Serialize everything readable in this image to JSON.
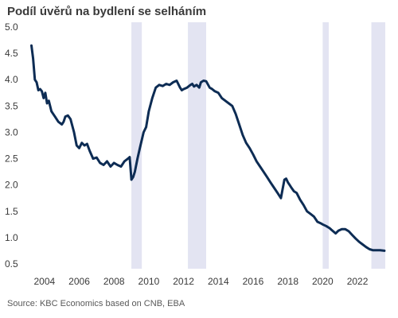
{
  "title": "Podíl úvěrů na bydlení se selháním",
  "source": "Source: KBC Economics based on CNB, EBA",
  "chart_data": {
    "type": "line",
    "title": "Podíl úvěrů na bydlení se selháním",
    "xlabel": "",
    "ylabel": "",
    "xlim": [
      2003.0,
      2023.6
    ],
    "ylim": [
      0.5,
      5.0
    ],
    "grid": false,
    "colors": {
      "line": "#0d2c54",
      "shade": "#e3e4f2",
      "text": "#3a3a3a"
    },
    "y_ticks": [
      "0.5",
      "1.0",
      "1.5",
      "2.0",
      "2.5",
      "3.0",
      "3.5",
      "4.0",
      "4.5",
      "5.0"
    ],
    "x_ticks": [
      "2004",
      "2006",
      "2008",
      "2010",
      "2012",
      "2014",
      "2016",
      "2018",
      "2020",
      "2022"
    ],
    "shaded_periods": [
      [
        2009.0,
        2009.6
      ],
      [
        2012.25,
        2013.3
      ],
      [
        2020.0,
        2020.35
      ],
      [
        2022.8,
        2023.6
      ]
    ],
    "series": [
      {
        "x": [
          2003.25,
          2003.35,
          2003.45,
          2003.55,
          2003.65,
          2003.75,
          2003.85,
          2003.95,
          2004.05,
          2004.15,
          2004.25,
          2004.4,
          2004.5,
          2004.6,
          2004.8,
          2005.0,
          2005.1,
          2005.2,
          2005.35,
          2005.5,
          2005.7,
          2005.85,
          2006.0,
          2006.15,
          2006.3,
          2006.45,
          2006.6,
          2006.8,
          2007.0,
          2007.2,
          2007.4,
          2007.6,
          2007.8,
          2008.0,
          2008.2,
          2008.4,
          2008.6,
          2008.8,
          2008.9,
          2009.0,
          2009.1,
          2009.2,
          2009.35,
          2009.5,
          2009.7,
          2009.85,
          2010.0,
          2010.2,
          2010.4,
          2010.6,
          2010.8,
          2011.0,
          2011.2,
          2011.4,
          2011.6,
          2011.8,
          2011.9,
          2012.0,
          2012.2,
          2012.4,
          2012.5,
          2012.6,
          2012.75,
          2012.9,
          2013.0,
          2013.15,
          2013.3,
          2013.5,
          2013.65,
          2013.8,
          2014.0,
          2014.2,
          2014.4,
          2014.6,
          2014.8,
          2015.0,
          2015.2,
          2015.4,
          2015.6,
          2015.8,
          2016.0,
          2016.2,
          2016.4,
          2016.6,
          2016.8,
          2017.0,
          2017.2,
          2017.4,
          2017.6,
          2017.8,
          2017.9,
          2018.0,
          2018.1,
          2018.2,
          2018.35,
          2018.5,
          2018.7,
          2018.9,
          2019.1,
          2019.3,
          2019.5,
          2019.7,
          2019.9,
          2020.0,
          2020.2,
          2020.4,
          2020.5,
          2020.6,
          2020.75,
          2020.9,
          2021.1,
          2021.3,
          2021.5,
          2021.7,
          2021.9,
          2022.1,
          2022.3,
          2022.5,
          2022.7,
          2022.9,
          2023.1,
          2023.3,
          2023.55
        ],
        "values": [
          4.65,
          4.4,
          4.0,
          3.95,
          3.8,
          3.82,
          3.78,
          3.65,
          3.75,
          3.55,
          3.6,
          3.4,
          3.35,
          3.3,
          3.2,
          3.15,
          3.2,
          3.3,
          3.32,
          3.25,
          3.0,
          2.75,
          2.7,
          2.8,
          2.75,
          2.78,
          2.65,
          2.5,
          2.52,
          2.42,
          2.38,
          2.45,
          2.35,
          2.42,
          2.38,
          2.35,
          2.45,
          2.5,
          2.53,
          2.1,
          2.15,
          2.25,
          2.5,
          2.72,
          3.0,
          3.1,
          3.4,
          3.65,
          3.85,
          3.9,
          3.88,
          3.92,
          3.9,
          3.95,
          3.98,
          3.85,
          3.8,
          3.82,
          3.85,
          3.9,
          3.92,
          3.87,
          3.9,
          3.85,
          3.95,
          3.98,
          3.97,
          3.85,
          3.82,
          3.78,
          3.75,
          3.65,
          3.6,
          3.55,
          3.5,
          3.35,
          3.15,
          2.95,
          2.8,
          2.7,
          2.58,
          2.45,
          2.35,
          2.25,
          2.15,
          2.05,
          1.95,
          1.85,
          1.75,
          2.1,
          2.12,
          2.05,
          2.0,
          1.95,
          1.88,
          1.85,
          1.72,
          1.62,
          1.5,
          1.45,
          1.4,
          1.3,
          1.27,
          1.25,
          1.22,
          1.18,
          1.15,
          1.12,
          1.08,
          1.13,
          1.16,
          1.16,
          1.12,
          1.05,
          0.98,
          0.92,
          0.87,
          0.82,
          0.78,
          0.76,
          0.76,
          0.76,
          0.75
        ]
      }
    ]
  }
}
